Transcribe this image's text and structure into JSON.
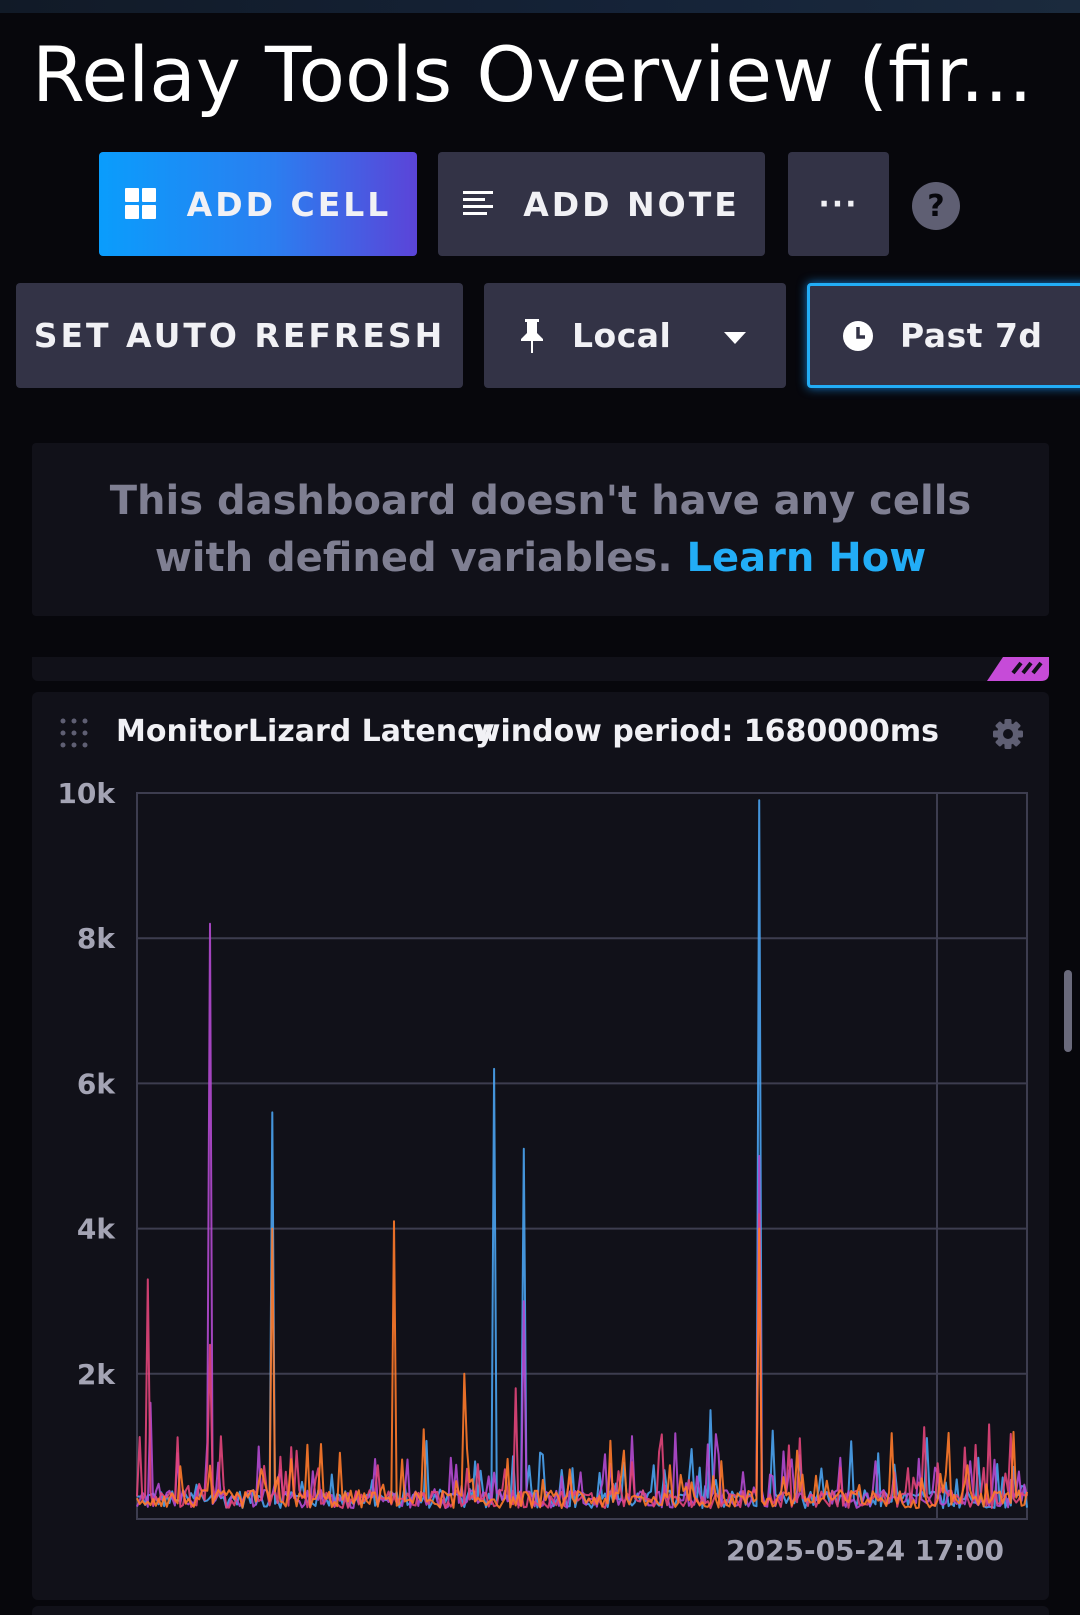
{
  "header": {
    "title": "Relay Tools Overview (fir..."
  },
  "toolbar": {
    "add_cell_label": "ADD CELL",
    "add_note_label": "ADD NOTE",
    "more_label": "···",
    "help_label": "?",
    "auto_refresh_label": "SET AUTO REFRESH",
    "timezone_label": "Local",
    "time_range_label": "Past 7d"
  },
  "notice": {
    "text": "This dashboard doesn't have any cells with defined variables.",
    "link_text": "Learn How"
  },
  "cell": {
    "title": "MonitorLizard Latency",
    "window_period": "window period: 1680000ms"
  },
  "colors": {
    "accent_blue": "#22adf6",
    "series_blue": "#4aa3f0",
    "series_purple": "#b44ad0",
    "series_pink": "#e2457a",
    "series_orange": "#ff7a2a"
  },
  "icons": [
    "grid-icon",
    "note-lines-icon",
    "more-dots-icon",
    "help-icon",
    "pin-icon",
    "caret-down-icon",
    "clock-icon",
    "drag-grip-icon",
    "gear-icon"
  ],
  "chart_data": {
    "type": "line",
    "title": "",
    "xlabel": "",
    "ylabel": "",
    "ylim": [
      0,
      10000
    ],
    "yticks": [
      "10k",
      "8k",
      "6k",
      "4k",
      "2k"
    ],
    "xticks": [
      "2025-05-24 17:00"
    ],
    "grid": true,
    "series": [
      {
        "color": "#4aa3f0",
        "spikes": [
          {
            "x": 0.152,
            "y": 5600
          },
          {
            "x": 0.402,
            "y": 6200
          },
          {
            "x": 0.434,
            "y": 5100
          },
          {
            "x": 0.699,
            "y": 9900
          },
          {
            "x": 0.645,
            "y": 1500
          }
        ]
      },
      {
        "color": "#b44ad0",
        "spikes": [
          {
            "x": 0.083,
            "y": 8200
          },
          {
            "x": 0.434,
            "y": 3000
          },
          {
            "x": 0.699,
            "y": 5000
          },
          {
            "x": 0.014,
            "y": 1600
          }
        ]
      },
      {
        "color": "#e2457a",
        "spikes": [
          {
            "x": 0.011,
            "y": 3300
          },
          {
            "x": 0.083,
            "y": 2400
          },
          {
            "x": 0.425,
            "y": 1800
          },
          {
            "x": 0.699,
            "y": 4200
          }
        ]
      },
      {
        "color": "#ff7a2a",
        "spikes": [
          {
            "x": 0.152,
            "y": 4000
          },
          {
            "x": 0.288,
            "y": 4100
          },
          {
            "x": 0.368,
            "y": 2000
          },
          {
            "x": 0.699,
            "y": 4000
          },
          {
            "x": 0.985,
            "y": 1200
          }
        ]
      }
    ],
    "baseline": 150,
    "noise_max": 1200
  }
}
